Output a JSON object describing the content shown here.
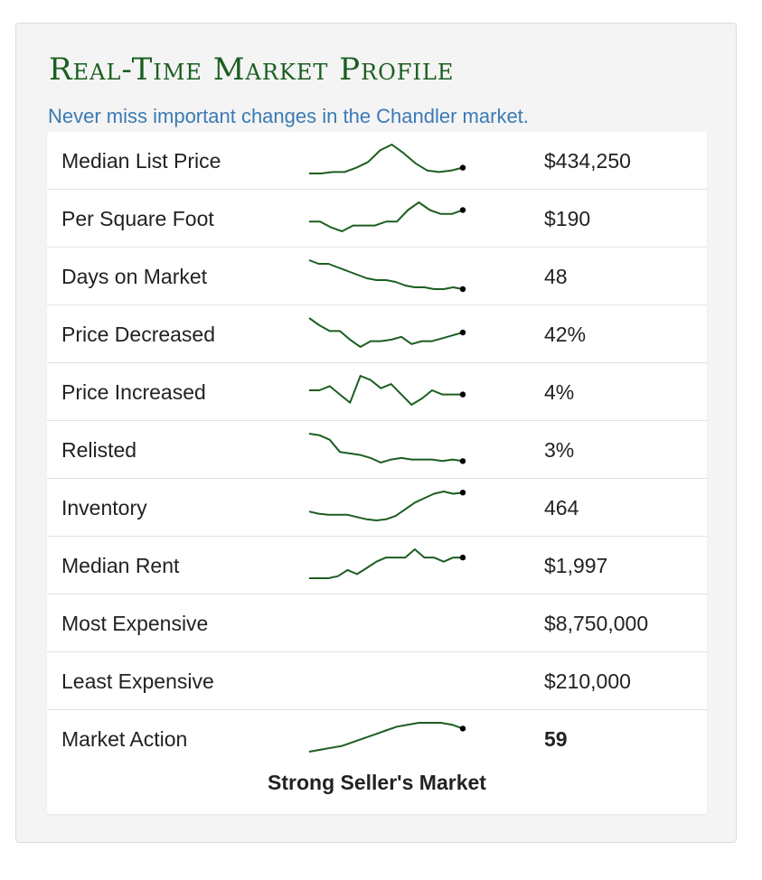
{
  "header": {
    "title": "Real-Time Market Profile",
    "subtitle": "Never miss important changes in the Chandler market."
  },
  "colors": {
    "title": "#1b5e20",
    "subtitle": "#3a7ab5",
    "sparkline": "#1b5e20",
    "endpoint": "#000000"
  },
  "metrics": [
    {
      "label": "Median List Price",
      "value": "$434,250",
      "trend": [
        6,
        6,
        7,
        7,
        10,
        14,
        22,
        26,
        20,
        13,
        8,
        7,
        8,
        10
      ]
    },
    {
      "label": "Per Square Foot",
      "value": "$190",
      "trend": [
        8,
        8,
        5,
        3,
        6,
        6,
        6,
        8,
        8,
        14,
        18,
        14,
        12,
        12,
        14
      ]
    },
    {
      "label": "Days on Market",
      "value": "48",
      "trend": [
        25,
        23,
        23,
        21,
        19,
        17,
        15,
        14,
        14,
        13,
        11,
        10,
        10,
        9,
        9,
        10,
        9
      ]
    },
    {
      "label": "Price Decreased",
      "value": "42%",
      "trend": [
        20,
        15,
        11,
        11,
        5,
        0,
        4,
        4,
        5,
        7,
        2,
        4,
        4,
        6,
        8,
        10
      ]
    },
    {
      "label": "Price Increased",
      "value": "4%",
      "trend": [
        12,
        12,
        14,
        10,
        6,
        19,
        17,
        13,
        15,
        10,
        5,
        8,
        12,
        10,
        10,
        10
      ]
    },
    {
      "label": "Relisted",
      "value": "3%",
      "trend": [
        20,
        19,
        16,
        8,
        7,
        6,
        4,
        1,
        3,
        4,
        3,
        3,
        3,
        2,
        3,
        2
      ]
    },
    {
      "label": "Inventory",
      "value": "464",
      "trend": [
        10,
        8,
        7,
        7,
        7,
        5,
        3,
        2,
        3,
        6,
        12,
        18,
        22,
        26,
        28,
        26,
        27
      ]
    },
    {
      "label": "Median Rent",
      "value": "$1,997",
      "trend": [
        4,
        4,
        4,
        5,
        8,
        6,
        9,
        12,
        14,
        14,
        14,
        18,
        14,
        14,
        12,
        14,
        14
      ]
    },
    {
      "label": "Most Expensive",
      "value": "$8,750,000",
      "trend": null
    },
    {
      "label": "Least Expensive",
      "value": "$210,000",
      "trend": null
    },
    {
      "label": "Market Action",
      "value": "59",
      "trend": [
        1,
        2,
        3,
        4,
        6,
        8,
        10,
        12,
        14,
        15,
        16,
        16,
        16,
        15,
        13
      ]
    }
  ],
  "market_status": "Strong Seller's Market"
}
